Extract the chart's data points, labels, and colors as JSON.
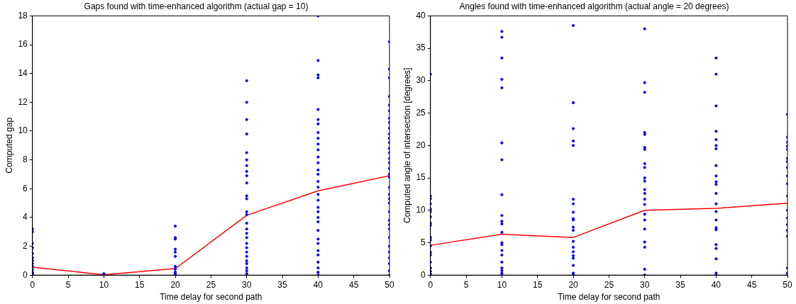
{
  "chart_data": [
    {
      "type": "scatter",
      "title": "Gaps found with time-enhanced algorithm (actual gap = 10)",
      "xlabel": "Time delay for second path",
      "ylabel": "Computed gap",
      "xlim": [
        0,
        50
      ],
      "xticks": [
        0,
        5,
        10,
        15,
        20,
        25,
        30,
        35,
        40,
        45,
        50
      ],
      "ylim": [
        0,
        18
      ],
      "yticks": [
        0,
        2,
        4,
        6,
        8,
        10,
        12,
        14,
        16,
        18
      ],
      "grid": false,
      "legend": false,
      "marker": "circle",
      "series": [
        {
          "type": "scatter",
          "color": "#0000ff",
          "x": [
            0,
            0,
            0,
            0,
            0,
            0,
            0,
            0,
            0,
            0,
            0,
            0,
            0,
            10,
            10,
            10,
            20,
            20,
            20,
            20,
            20,
            20,
            20,
            20,
            20,
            20,
            20,
            30,
            30,
            30,
            30,
            30,
            30,
            30,
            30,
            30,
            30,
            30,
            30,
            30,
            30,
            30,
            30,
            30,
            30,
            30,
            30,
            30,
            30,
            30,
            30,
            30,
            30,
            30,
            30,
            40,
            40,
            40,
            40,
            40,
            40,
            40,
            40,
            40,
            40,
            40,
            40,
            40,
            40,
            40,
            40,
            40,
            40,
            40,
            40,
            40,
            40,
            40,
            40,
            40,
            40,
            40,
            40,
            40,
            40,
            40,
            40,
            50,
            50,
            50,
            50,
            50,
            50,
            50,
            50,
            50,
            50,
            50,
            50,
            50,
            50,
            50,
            50,
            50,
            50,
            50,
            50,
            50,
            50,
            50,
            50,
            50,
            50,
            50,
            50,
            50,
            50,
            50,
            50,
            50,
            50
          ],
          "values": [
            3.2,
            3.0,
            2.2,
            1.9,
            1.5,
            1.2,
            1.0,
            0.8,
            0.6,
            0.4,
            0.2,
            0.1,
            0,
            0.1,
            0.05,
            0,
            3.4,
            2.6,
            2.5,
            1.8,
            1.6,
            1.3,
            0.6,
            0.4,
            0.2,
            0.1,
            0,
            13.5,
            12.0,
            10.8,
            9.8,
            8.5,
            8.0,
            7.6,
            7.2,
            6.9,
            6.4,
            5.5,
            5.3,
            4.4,
            4.2,
            3.6,
            3.2,
            2.9,
            2.6,
            2.2,
            1.9,
            1.6,
            1.3,
            1.0,
            0.8,
            0.5,
            0.3,
            0.1,
            0,
            18.0,
            14.9,
            13.9,
            13.7,
            11.5,
            10.8,
            10.5,
            9.9,
            9.5,
            9.1,
            8.7,
            8.2,
            7.8,
            7.3,
            7.0,
            6.5,
            6.1,
            5.6,
            5.2,
            4.7,
            4.4,
            4.0,
            3.7,
            3.1,
            2.5,
            2.2,
            1.7,
            1.4,
            0.9,
            0.5,
            0.2,
            0,
            16.2,
            14.3,
            13.7,
            12.4,
            11.8,
            11.4,
            10.9,
            10.6,
            10.2,
            9.8,
            9.5,
            9.2,
            8.8,
            8.5,
            8.1,
            7.8,
            7.4,
            7.0,
            6.8,
            6.1,
            5.6,
            5.3,
            5.0,
            4.4,
            3.8,
            3.5,
            3.2,
            2.6,
            2.0,
            1.6,
            1.2,
            0.8,
            0.3,
            0
          ]
        },
        {
          "type": "line",
          "color": "#ff0000",
          "marker": "none",
          "x": [
            0,
            10,
            20,
            30,
            40,
            50
          ],
          "values": [
            0.55,
            0.02,
            0.45,
            4.15,
            5.85,
            6.9
          ]
        }
      ]
    },
    {
      "type": "scatter",
      "title": "Angles found with time-enhanced algorithm (actual angle = 20 degrees)",
      "xlabel": "Time delay for second path",
      "ylabel": "Computed angle of intersection [degrees]",
      "xlim": [
        0,
        50
      ],
      "xticks": [
        0,
        5,
        10,
        15,
        20,
        25,
        30,
        35,
        40,
        45,
        50
      ],
      "ylim": [
        0,
        40
      ],
      "yticks": [
        0,
        5,
        10,
        15,
        20,
        25,
        30,
        35,
        40
      ],
      "grid": false,
      "legend": false,
      "marker": "circle",
      "series": [
        {
          "type": "scatter",
          "color": "#0000ff",
          "x": [
            0,
            0,
            0,
            0,
            0,
            0,
            0,
            0,
            0,
            0,
            0,
            0,
            0,
            0,
            0,
            0,
            0,
            0,
            0,
            10,
            10,
            10,
            10,
            10,
            10,
            10,
            10,
            10,
            10,
            10,
            10,
            10,
            10,
            10,
            10,
            10,
            10,
            10,
            10,
            10,
            20,
            20,
            20,
            20,
            20,
            20,
            20,
            20,
            20,
            20,
            20,
            20,
            20,
            20,
            20,
            20,
            20,
            20,
            20,
            20,
            30,
            30,
            30,
            30,
            30,
            30,
            30,
            30,
            30,
            30,
            30,
            30,
            30,
            30,
            30,
            30,
            30,
            30,
            30,
            30,
            30,
            30,
            40,
            40,
            40,
            40,
            40,
            40,
            40,
            40,
            40,
            40,
            40,
            40,
            40,
            40,
            40,
            40,
            40,
            40,
            40,
            40,
            40,
            40,
            50,
            50,
            50,
            50,
            50,
            50,
            50,
            50,
            50,
            50,
            50,
            50,
            50,
            50,
            50,
            50,
            50,
            50,
            50
          ],
          "values": [
            31,
            12.2,
            11.8,
            11,
            10.2,
            9.8,
            9,
            8,
            7.7,
            5.8,
            5.4,
            4.5,
            3.5,
            3.1,
            2,
            1.1,
            0.6,
            0.2,
            0,
            37.6,
            36.7,
            33.5,
            30.2,
            28.9,
            20.4,
            17.8,
            12.4,
            9.2,
            8.3,
            7.9,
            6.6,
            5.0,
            4.7,
            3.8,
            3.1,
            2.0,
            1.1,
            0.7,
            0.3,
            0,
            38.5,
            26.6,
            22.6,
            20.7,
            20.0,
            11.7,
            11.0,
            9.7,
            8.7,
            8.5,
            7.4,
            6.9,
            5.2,
            4.3,
            3.6,
            3.0,
            2.6,
            1.5,
            0.3,
            0,
            38.0,
            29.7,
            28.2,
            22.0,
            21.7,
            19.7,
            19.4,
            17.2,
            16.6,
            15.0,
            14.5,
            13.2,
            12.6,
            11.7,
            10.9,
            9.4,
            8.5,
            7.1,
            5.1,
            4.3,
            0.9,
            0,
            33.5,
            31.0,
            26.1,
            22.2,
            20.9,
            20.0,
            19.5,
            16.9,
            15.3,
            14.4,
            14.0,
            12.6,
            11.0,
            9.8,
            8.5,
            7.3,
            7.0,
            4.7,
            4.1,
            2.5,
            0.3,
            0,
            24.8,
            21.3,
            20.5,
            19.9,
            19.4,
            18.0,
            17.5,
            16.6,
            15.3,
            14.1,
            12.2,
            10.0,
            8.8,
            7.8,
            6.9,
            6.0,
            1.1,
            0.3,
            0
          ]
        },
        {
          "type": "line",
          "color": "#ff0000",
          "marker": "none",
          "x": [
            0,
            10,
            20,
            30,
            40,
            50
          ],
          "values": [
            4.6,
            6.3,
            5.8,
            10.0,
            10.3,
            11.1
          ]
        }
      ]
    }
  ]
}
